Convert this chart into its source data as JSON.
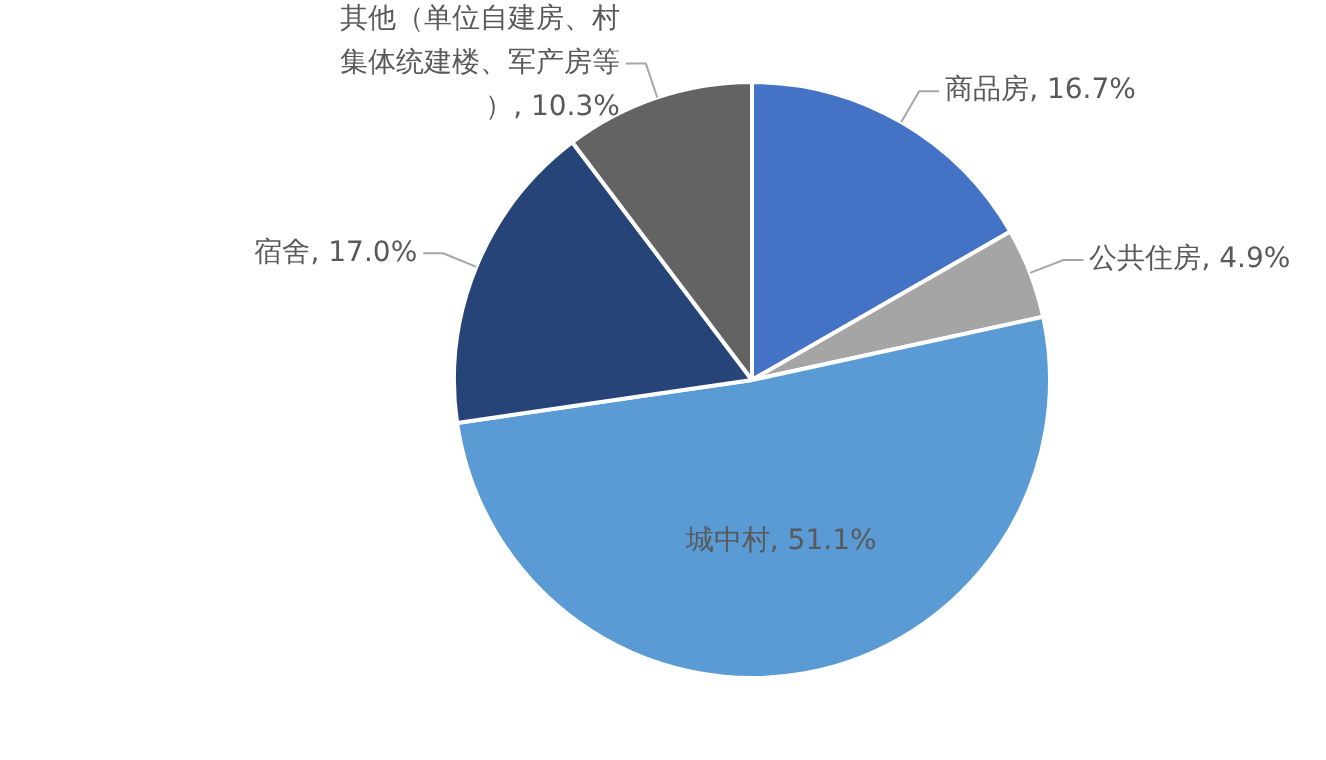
{
  "chart_data": {
    "type": "pie",
    "categories": [
      "商品房",
      "公共住房",
      "城中村",
      "宿舍",
      "其他（单位自建房、村集体统建楼、军产房等）"
    ],
    "values": [
      16.7,
      4.9,
      51.1,
      17.0,
      10.3
    ],
    "colors": [
      "#4472c4",
      "#a5a5a5",
      "#5b9bd5",
      "#264478",
      "#636363"
    ],
    "value_labels": [
      "16.7%",
      "4.9%",
      "51.1%",
      "17.0%",
      "10.3%"
    ],
    "legend": false
  }
}
